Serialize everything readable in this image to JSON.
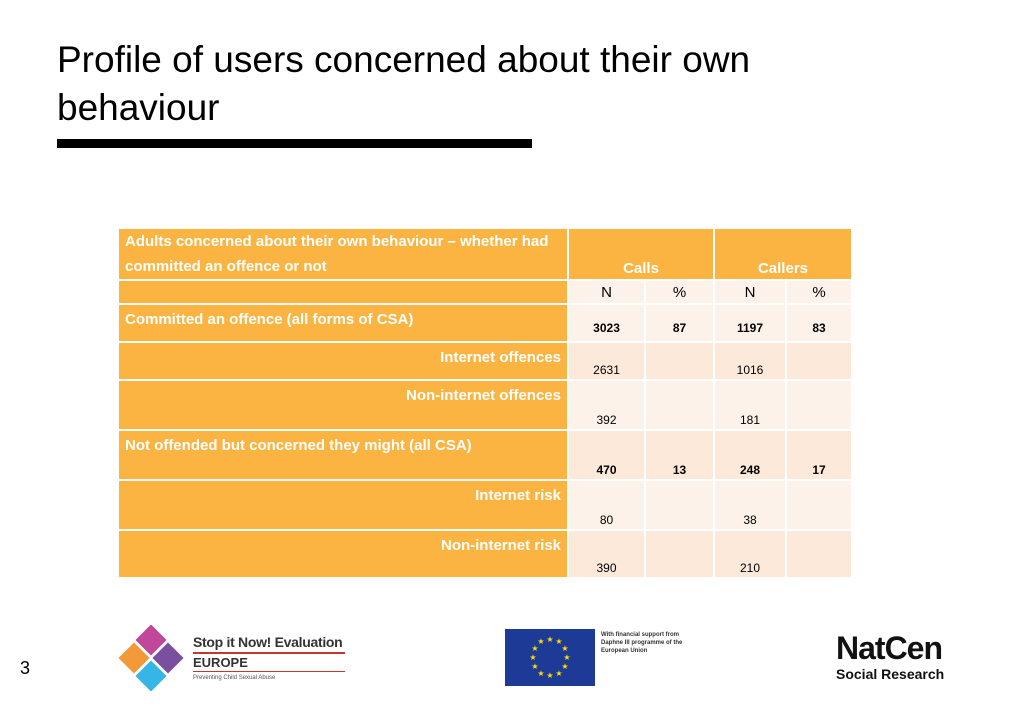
{
  "slide": {
    "title": "Profile of users concerned about their own behaviour",
    "page_number": "3"
  },
  "table": {
    "header_label": "Adults concerned about their own behaviour – whether had committed an offence or not",
    "col_groups": [
      "Calls",
      "Callers"
    ],
    "subheaders": [
      "N",
      "%",
      "N",
      "%"
    ],
    "rows": [
      {
        "label": "Committed an offence (all forms of CSA)",
        "calls_n": "3023",
        "calls_pct": "87",
        "callers_n": "1197",
        "callers_pct": "83"
      },
      {
        "label": "Internet offences",
        "calls_n": "2631",
        "calls_pct": "",
        "callers_n": "1016",
        "callers_pct": ""
      },
      {
        "label": "Non-internet offences",
        "calls_n": "392",
        "calls_pct": "",
        "callers_n": "181",
        "callers_pct": ""
      },
      {
        "label": "Not offended but concerned they might (all CSA)",
        "calls_n": "470",
        "calls_pct": "13",
        "callers_n": "248",
        "callers_pct": "17"
      },
      {
        "label": "Internet risk",
        "calls_n": "80",
        "calls_pct": "",
        "callers_n": "38",
        "callers_pct": ""
      },
      {
        "label": "Non-internet risk",
        "calls_n": "390",
        "calls_pct": "",
        "callers_n": "210",
        "callers_pct": ""
      }
    ]
  },
  "logos": {
    "stopitnow_line1": "Stop it Now! Evaluation",
    "stopitnow_line2": "EUROPE",
    "stopitnow_tagline": "Preventing Child Sexual Abuse",
    "eu_text": "With financial support from Daphne III programme of the European Union",
    "natcen_name": "NatCen",
    "natcen_sub": "Social Research",
    "colors": {
      "puzzle_pink": "#c0479a",
      "puzzle_orange": "#f29a3a",
      "puzzle_cyan": "#35b6e6",
      "puzzle_purple": "#7a4fa0",
      "eu_blue": "#1d3b96",
      "eu_star": "#ffdd00"
    }
  },
  "colors": {
    "header_orange": "#fbb441",
    "cell_light": "#fdf2e9",
    "cell_alt": "#fde9d9"
  }
}
